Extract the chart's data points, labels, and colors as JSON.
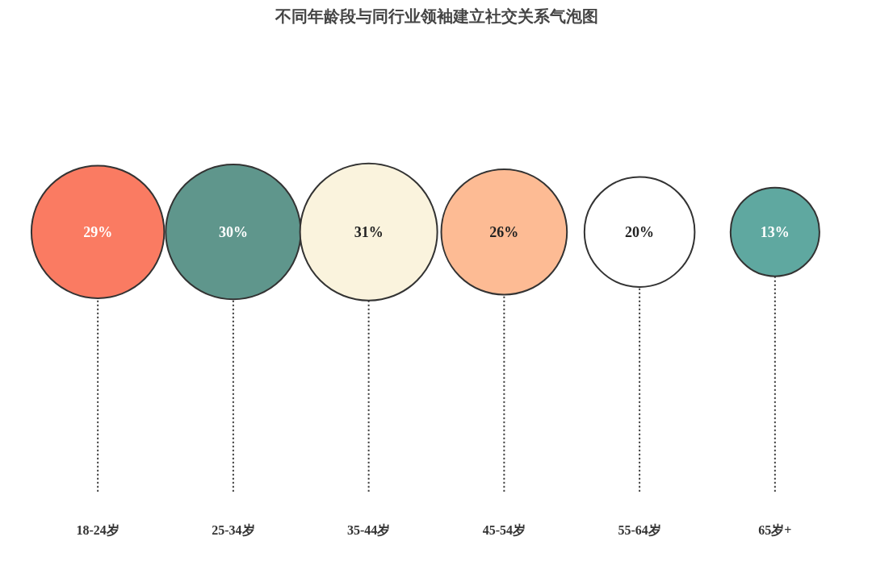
{
  "chart_data": {
    "type": "other",
    "title": "不同年龄段与同行业领袖建立社交关系气泡图",
    "categories": [
      "18-24岁",
      "25-34岁",
      "35-44岁",
      "45-54岁",
      "55-64岁",
      "65岁+"
    ],
    "values": [
      29,
      30,
      31,
      26,
      20,
      13
    ],
    "value_labels": [
      "29%",
      "30%",
      "31%",
      "26%",
      "20%",
      "13%"
    ],
    "colors": [
      "#fa7b62",
      "#5f968c",
      "#faf3dd",
      "#fdbb94",
      "#ffffff",
      "#5fa8a0"
    ]
  }
}
